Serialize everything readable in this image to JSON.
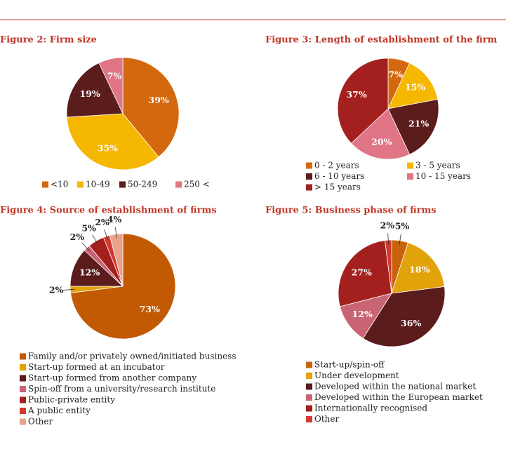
{
  "chart_data": [
    {
      "type": "pie",
      "title": "Figure 2: Firm size",
      "categories": [
        "<10",
        "10-49",
        "50-249",
        "250 <"
      ],
      "values": [
        39,
        35,
        19,
        7
      ],
      "value_labels": [
        "39%",
        "35%",
        "19%",
        "7%"
      ],
      "colors": [
        "#d4680f",
        "#f6b700",
        "#5b1c1c",
        "#e07585"
      ]
    },
    {
      "type": "pie",
      "title": "Figure 3: Length of establishment of the firm",
      "categories": [
        "0 - 2 years",
        "3 - 5 years",
        "6 - 10 years",
        "10 - 15 years",
        "> 15 years"
      ],
      "values": [
        7,
        15,
        21,
        20,
        37
      ],
      "value_labels": [
        "7%",
        "15%",
        "21%",
        "20%",
        "37%"
      ],
      "colors": [
        "#d4680f",
        "#f6b700",
        "#5b1c1c",
        "#e07585",
        "#a3201f"
      ]
    },
    {
      "type": "pie",
      "title": "Figure 4: Source of establishment of firms",
      "categories": [
        "Family and/or privately owned/initiated business",
        "Start-up formed at an incubator",
        "Start-up formed from another company",
        "Spin-off from a university/research institute",
        "Public-private entity",
        "A public entity",
        "Other"
      ],
      "values": [
        73,
        2,
        12,
        2,
        5,
        2,
        4
      ],
      "value_labels": [
        "73%",
        "2%",
        "12%",
        "2%",
        "5%",
        "2%",
        "4%"
      ],
      "colors": [
        "#c25a04",
        "#e3a204",
        "#5b1c1c",
        "#c86474",
        "#a3201f",
        "#d33a2f",
        "#e8a38a"
      ]
    },
    {
      "type": "pie",
      "title": "Figure 5: Business phase of firms",
      "categories": [
        "Start-up/spin-off",
        "Under development",
        "Developed within the national market",
        "Developed within the European market",
        "Internationally recognised",
        "Other"
      ],
      "values": [
        5,
        18,
        36,
        12,
        27,
        2
      ],
      "value_labels": [
        "5%",
        "18%",
        "36%",
        "12%",
        "27%",
        "2%"
      ],
      "colors": [
        "#c8630c",
        "#e2a20a",
        "#5b1c1c",
        "#c86474",
        "#a3201f",
        "#d33a2f"
      ]
    }
  ]
}
